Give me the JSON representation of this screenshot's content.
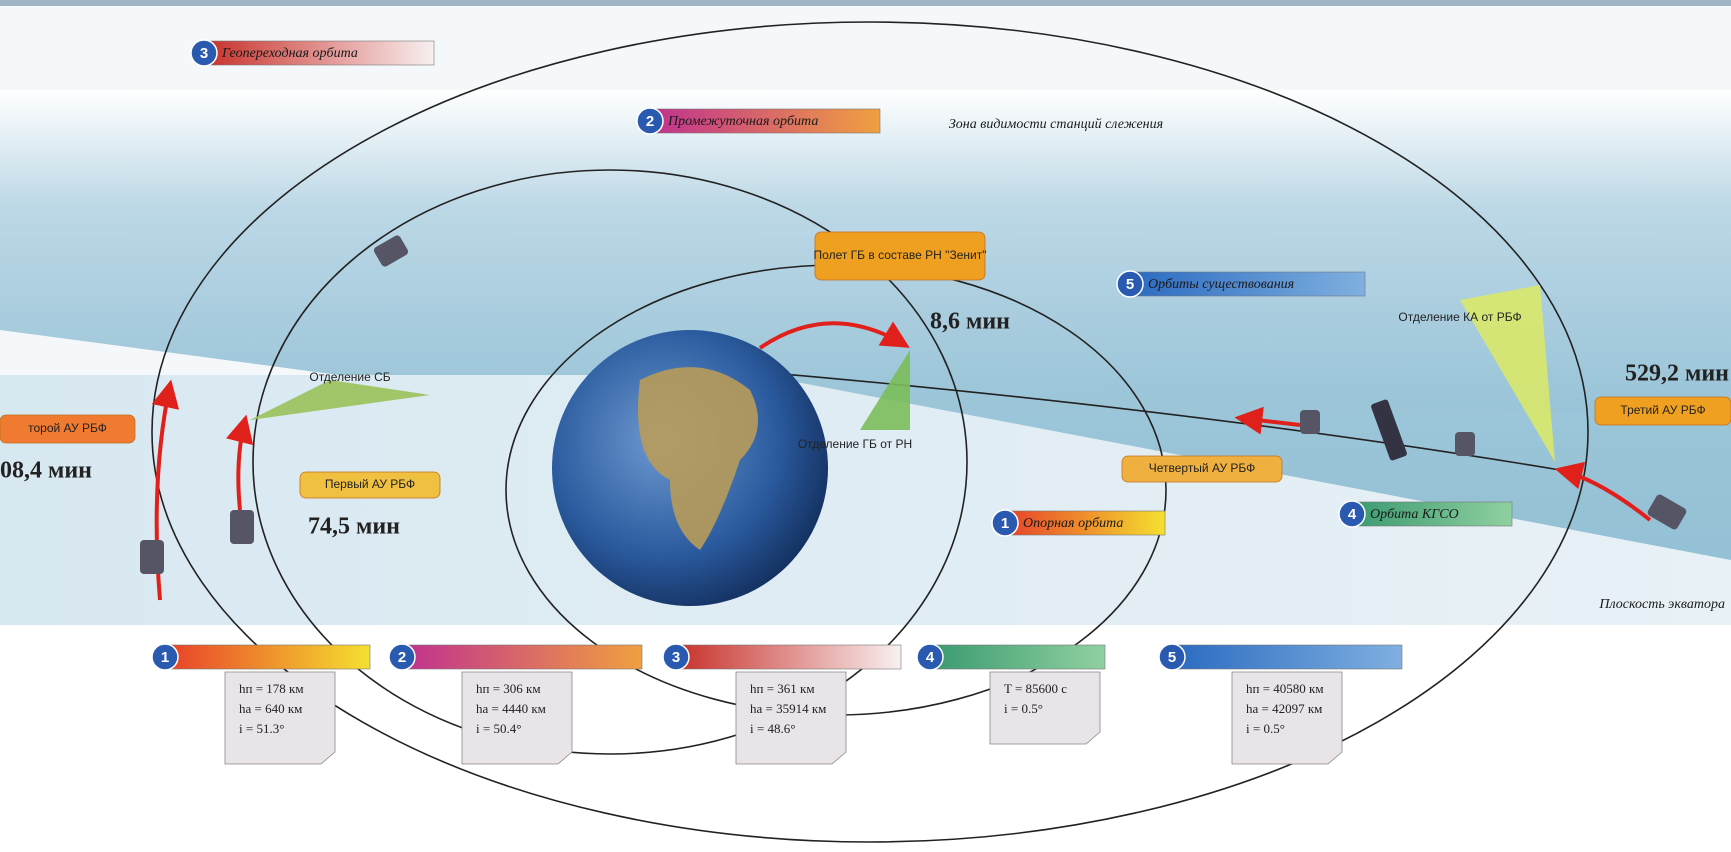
{
  "top_labels": [
    {
      "num": "3",
      "text": "Геопереходная орбита"
    },
    {
      "num": "2",
      "text": "Промежуточная орбита"
    },
    {
      "num": "5",
      "text": "Орбиты существования"
    },
    {
      "num": "4",
      "text": "Орбита КГСО"
    },
    {
      "num": "1",
      "text": "Опорная орбита"
    }
  ],
  "zone": "Зона видимости станций слежения",
  "equator": "Плоскость экватора",
  "callouts": {
    "flight": "Полет ГБ в составе РН \"Зенит\"",
    "separation_gb": "Отделение ГБ от РН",
    "separation_sb": "Отделение СБ",
    "separation_ka": "Отделение КА от РБФ",
    "burn1": "Первый АУ РБФ",
    "burn2": "торой АУ РБФ",
    "burn3": "Третий АУ РБФ",
    "burn4": "Четвертый АУ РБФ"
  },
  "times": {
    "t_flight": "8,6 мин",
    "t_burn1": "74,5 мин",
    "t_burn2": "08,4 мин",
    "t_burn3": "529,2 мин"
  },
  "cards": [
    {
      "num": "1",
      "title": "Опорная орбита",
      "lines": [
        "hп = 178 км",
        "hа = 640 км",
        "i = 51.3°"
      ]
    },
    {
      "num": "2",
      "title": "Промежуточная орбита",
      "lines": [
        "hп = 306 км",
        "hа = 4440 км",
        "i = 50.4°"
      ]
    },
    {
      "num": "3",
      "title": "Геопереходная орбита",
      "lines": [
        "hп = 361 км",
        "hа = 35914 км",
        "i = 48.6°"
      ]
    },
    {
      "num": "4",
      "title": "Орбита КГСО",
      "lines": [
        "T = 85600 с",
        "i = 0.5°"
      ]
    },
    {
      "num": "5",
      "title": "Орбиты существования",
      "lines": [
        "hп = 40580 км",
        "hа = 42097 км",
        "i = 0.5°"
      ]
    }
  ]
}
